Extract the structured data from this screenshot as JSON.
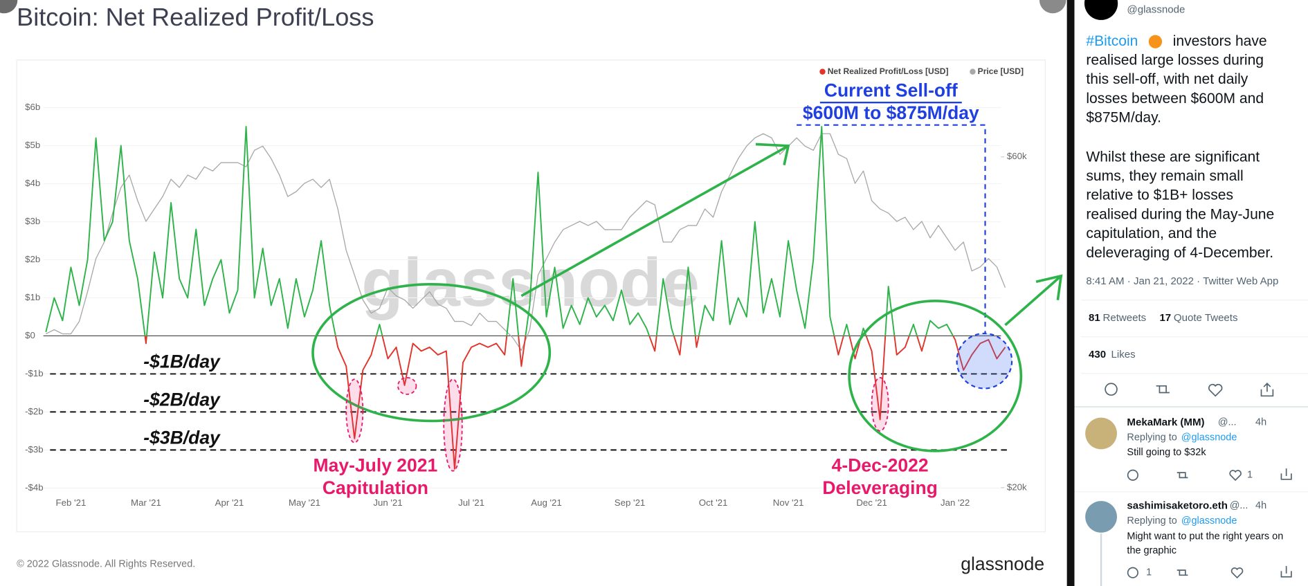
{
  "chart_data": {
    "type": "line",
    "title": "Bitcoin: Net Realized Profit/Loss",
    "categories": [
      null,
      null,
      null,
      "Feb '21",
      null,
      null,
      null,
      null,
      null,
      null,
      null,
      null,
      "Mar '21",
      null,
      null,
      null,
      null,
      null,
      null,
      null,
      null,
      null,
      "Apr '21",
      null,
      null,
      null,
      null,
      null,
      null,
      null,
      null,
      "May '21",
      null,
      null,
      null,
      null,
      null,
      null,
      null,
      null,
      null,
      "Jun '21",
      null,
      null,
      null,
      null,
      null,
      null,
      null,
      null,
      null,
      "Jul '21",
      null,
      null,
      null,
      null,
      null,
      null,
      null,
      null,
      "Aug '21",
      null,
      null,
      null,
      null,
      null,
      null,
      null,
      null,
      null,
      "Sep '21",
      null,
      null,
      null,
      null,
      null,
      null,
      null,
      null,
      null,
      "Oct '21",
      null,
      null,
      null,
      null,
      null,
      null,
      null,
      null,
      "Nov '21",
      null,
      null,
      null,
      null,
      null,
      null,
      null,
      null,
      null,
      "Dec '21",
      null,
      null,
      null,
      null,
      null,
      null,
      null,
      null,
      null,
      "Jan '22",
      null,
      null,
      null,
      null,
      null,
      null
    ],
    "series": [
      {
        "name": "Net Realized Profit/Loss [USD]",
        "color": "#e0352b",
        "positive_color": "#2eb34a",
        "values": [
          0.1,
          1.0,
          0.4,
          1.8,
          0.8,
          2.0,
          5.2,
          2.5,
          3.0,
          5.0,
          2.5,
          1.5,
          -0.2,
          2.2,
          1.0,
          3.5,
          1.5,
          1.0,
          2.8,
          0.8,
          1.5,
          2.0,
          0.6,
          1.2,
          5.5,
          1.0,
          2.3,
          0.8,
          1.5,
          0.2,
          1.5,
          0.5,
          1.2,
          2.5,
          0.8,
          -0.3,
          -0.8,
          -2.7,
          -0.9,
          -0.5,
          0.3,
          -0.6,
          -0.3,
          -1.3,
          -0.2,
          -0.4,
          -0.3,
          -0.5,
          -0.4,
          -3.5,
          -0.7,
          -0.3,
          -0.2,
          -0.3,
          -0.2,
          -0.5,
          1.5,
          -0.8,
          0.8,
          4.3,
          0.5,
          1.8,
          0.2,
          0.8,
          0.3,
          1.0,
          0.5,
          0.8,
          0.4,
          1.2,
          0.3,
          0.6,
          0.2,
          -0.4,
          1.5,
          0.2,
          -0.5,
          1.8,
          -0.3,
          0.8,
          0.4,
          2.5,
          0.3,
          1.0,
          0.5,
          3.0,
          0.6,
          1.5,
          0.5,
          2.5,
          1.2,
          0.2,
          2.0,
          5.5,
          0.5,
          -0.5,
          0.3,
          -0.6,
          0.2,
          -0.4,
          -2.2,
          1.3,
          -0.5,
          -0.3,
          0.3,
          -0.4,
          0.4,
          0.2,
          0.3,
          -0.1,
          -0.9,
          -0.5,
          -0.2,
          -0.1,
          -0.6,
          -0.3
        ]
      },
      {
        "name": "Price [USD]",
        "color": "#a8a8a8",
        "axis": "y2",
        "values": [
          38.6,
          39.1,
          38.6,
          38.6,
          40.1,
          43.7,
          47.7,
          49.7,
          53.2,
          56.3,
          57.8,
          54.7,
          52.2,
          53.7,
          55.2,
          57.3,
          56.3,
          57.8,
          57.3,
          58.8,
          58.3,
          59.3,
          59.3,
          59.3,
          58.8,
          60.8,
          61.3,
          59.8,
          57.8,
          55.2,
          55.8,
          56.8,
          57.3,
          56.3,
          57.3,
          53.7,
          48.7,
          45.7,
          42.7,
          41.1,
          41.7,
          44.2,
          43.2,
          42.7,
          41.7,
          42.7,
          43.7,
          42.2,
          41.7,
          40.1,
          40.1,
          39.6,
          41.1,
          40.1,
          40.1,
          39.1,
          38.1,
          36.6,
          39.1,
          45.7,
          47.7,
          49.7,
          51.2,
          51.7,
          52.2,
          51.7,
          52.2,
          51.2,
          51.2,
          51.2,
          52.7,
          53.7,
          54.7,
          54.2,
          49.7,
          49.7,
          51.2,
          51.7,
          51.7,
          53.7,
          52.7,
          55.8,
          57.8,
          59.8,
          61.3,
          62.3,
          62.8,
          62.3,
          60.3,
          61.3,
          62.3,
          61.3,
          60.8,
          62.8,
          62.8,
          60.3,
          59.8,
          56.8,
          58.3,
          54.7,
          53.7,
          53.2,
          52.2,
          52.7,
          51.2,
          52.2,
          50.2,
          51.7,
          50.2,
          48.7,
          49.7,
          46.2,
          46.7,
          47.7,
          46.7,
          44.2
        ]
      }
    ],
    "ylim": [
      -4.1,
      6.9
    ],
    "yticks": [
      {
        "value": 6,
        "label": "$6b"
      },
      {
        "value": 5,
        "label": "$5b"
      },
      {
        "value": 4,
        "label": "$4b"
      },
      {
        "value": 3,
        "label": "$3b"
      },
      {
        "value": 2,
        "label": "$2b"
      },
      {
        "value": 1,
        "label": "$1b"
      },
      {
        "value": 0,
        "label": "$0"
      },
      {
        "value": -1,
        "label": "-$1b"
      },
      {
        "value": -2,
        "label": "-$2b"
      },
      {
        "value": -3,
        "label": "-$3b"
      },
      {
        "value": -4,
        "label": "-$4b"
      }
    ],
    "y2lim": [
      19.5,
      70.1
    ],
    "y2ticks": [
      {
        "value": 60,
        "label": "$60k"
      },
      {
        "value": 20,
        "label": "$20k"
      }
    ],
    "grid": true,
    "legend": "top-right",
    "reference_lines": [
      {
        "value": -1,
        "label": "-$1B/day"
      },
      {
        "value": -2,
        "label": "-$2B/day"
      },
      {
        "value": -3,
        "label": "-$3B/day"
      }
    ],
    "annotations": [
      "Current Sell-off",
      "$600M to $875M/day",
      "May-July 2021",
      "Capitulation",
      "4-Dec-2022",
      "Deleveraging"
    ],
    "watermark": "glassnode",
    "copyright": "© 2022 Glassnode. All Rights Reserved.",
    "logo": "glassnode"
  },
  "tweet": {
    "handle": "@glassnode",
    "hashtag": "#Bitcoin",
    "lines": [
      "investors have",
      "realised large losses during",
      "this sell-off, with net daily",
      "losses between $600M and",
      "$875M/day."
    ],
    "lines2": [
      "Whilst these are significant",
      "sums, they remain small",
      "relative to $1B+ losses",
      "realised during the May-June",
      "capitulation, and the",
      "deleveraging of 4-December."
    ],
    "meta": "8:41 AM · Jan 21, 2022 · Twitter Web App",
    "retweets": 81,
    "retweets_label": "Retweets",
    "quotes": 17,
    "quotes_label": "Quote Tweets",
    "likes": 430,
    "likes_label": "Likes"
  },
  "replies": [
    {
      "name": "MekaMark (MM)",
      "handle": "@...",
      "time": "4h",
      "replying": "Replying to",
      "to": "@glassnode",
      "lines": [
        "Still going to $32k"
      ],
      "like_count": 1
    },
    {
      "name": "sashimisaketoro.eth",
      "handle": "@...",
      "time": "4h",
      "replying": "Replying to",
      "to": "@glassnode",
      "lines": [
        "Might want to put the right years on",
        "the graphic"
      ],
      "reply_count": 1
    }
  ]
}
